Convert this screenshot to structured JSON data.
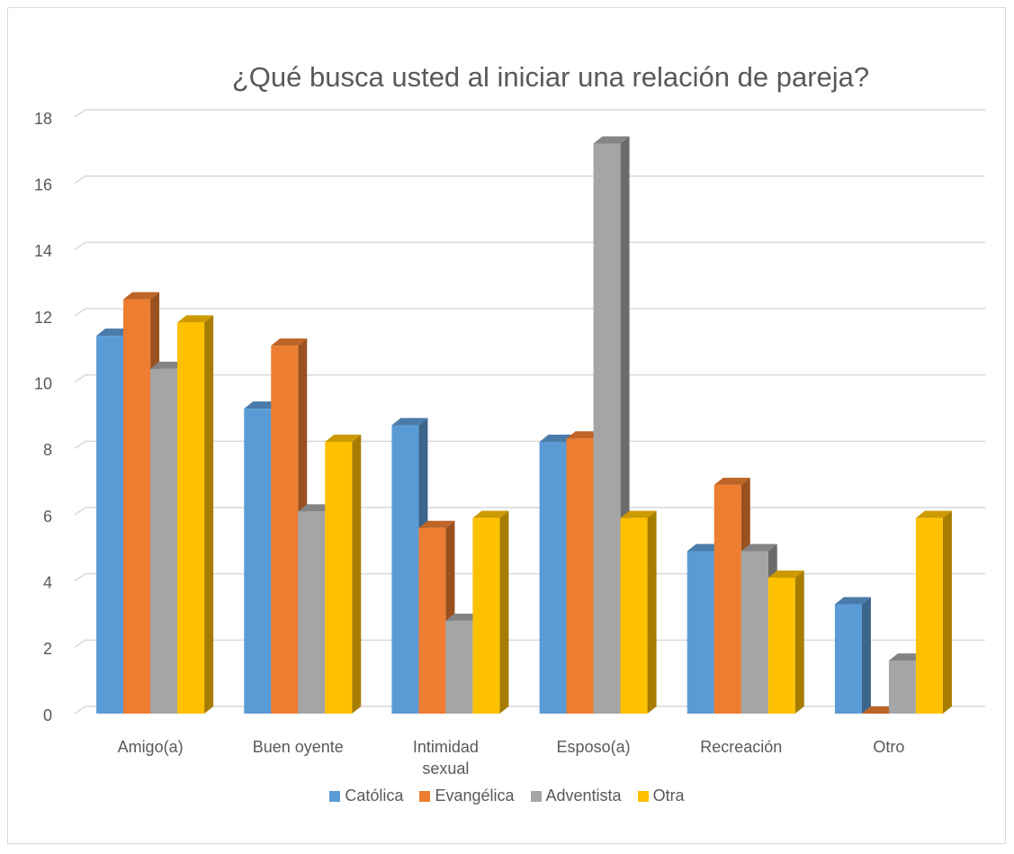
{
  "chart_data": {
    "type": "bar3d",
    "title": "¿Qué busca usted al iniciar una relación de pareja?",
    "categories": [
      "Amigo(a)",
      "Buen oyente",
      "Intimidad sexual",
      "Esposo(a)",
      "Recreación",
      "Otro"
    ],
    "series": [
      {
        "name": "Católica",
        "color": "#5b9bd5",
        "values": [
          11.4,
          9.2,
          8.7,
          8.2,
          4.9,
          3.3
        ]
      },
      {
        "name": "Evangélica",
        "color": "#ed7d31",
        "values": [
          12.5,
          11.1,
          5.6,
          8.3,
          6.9,
          0
        ]
      },
      {
        "name": "Adventista",
        "color": "#a5a5a5",
        "values": [
          10.4,
          6.1,
          2.8,
          17.2,
          4.9,
          1.6
        ]
      },
      {
        "name": "Otra",
        "color": "#ffc000",
        "values": [
          11.8,
          8.2,
          5.9,
          5.9,
          4.1,
          5.9
        ]
      }
    ],
    "ylim": [
      0,
      18
    ],
    "yticks": [
      0,
      2,
      4,
      6,
      8,
      10,
      12,
      14,
      16,
      18
    ],
    "grid": true,
    "legend": "bottom"
  }
}
